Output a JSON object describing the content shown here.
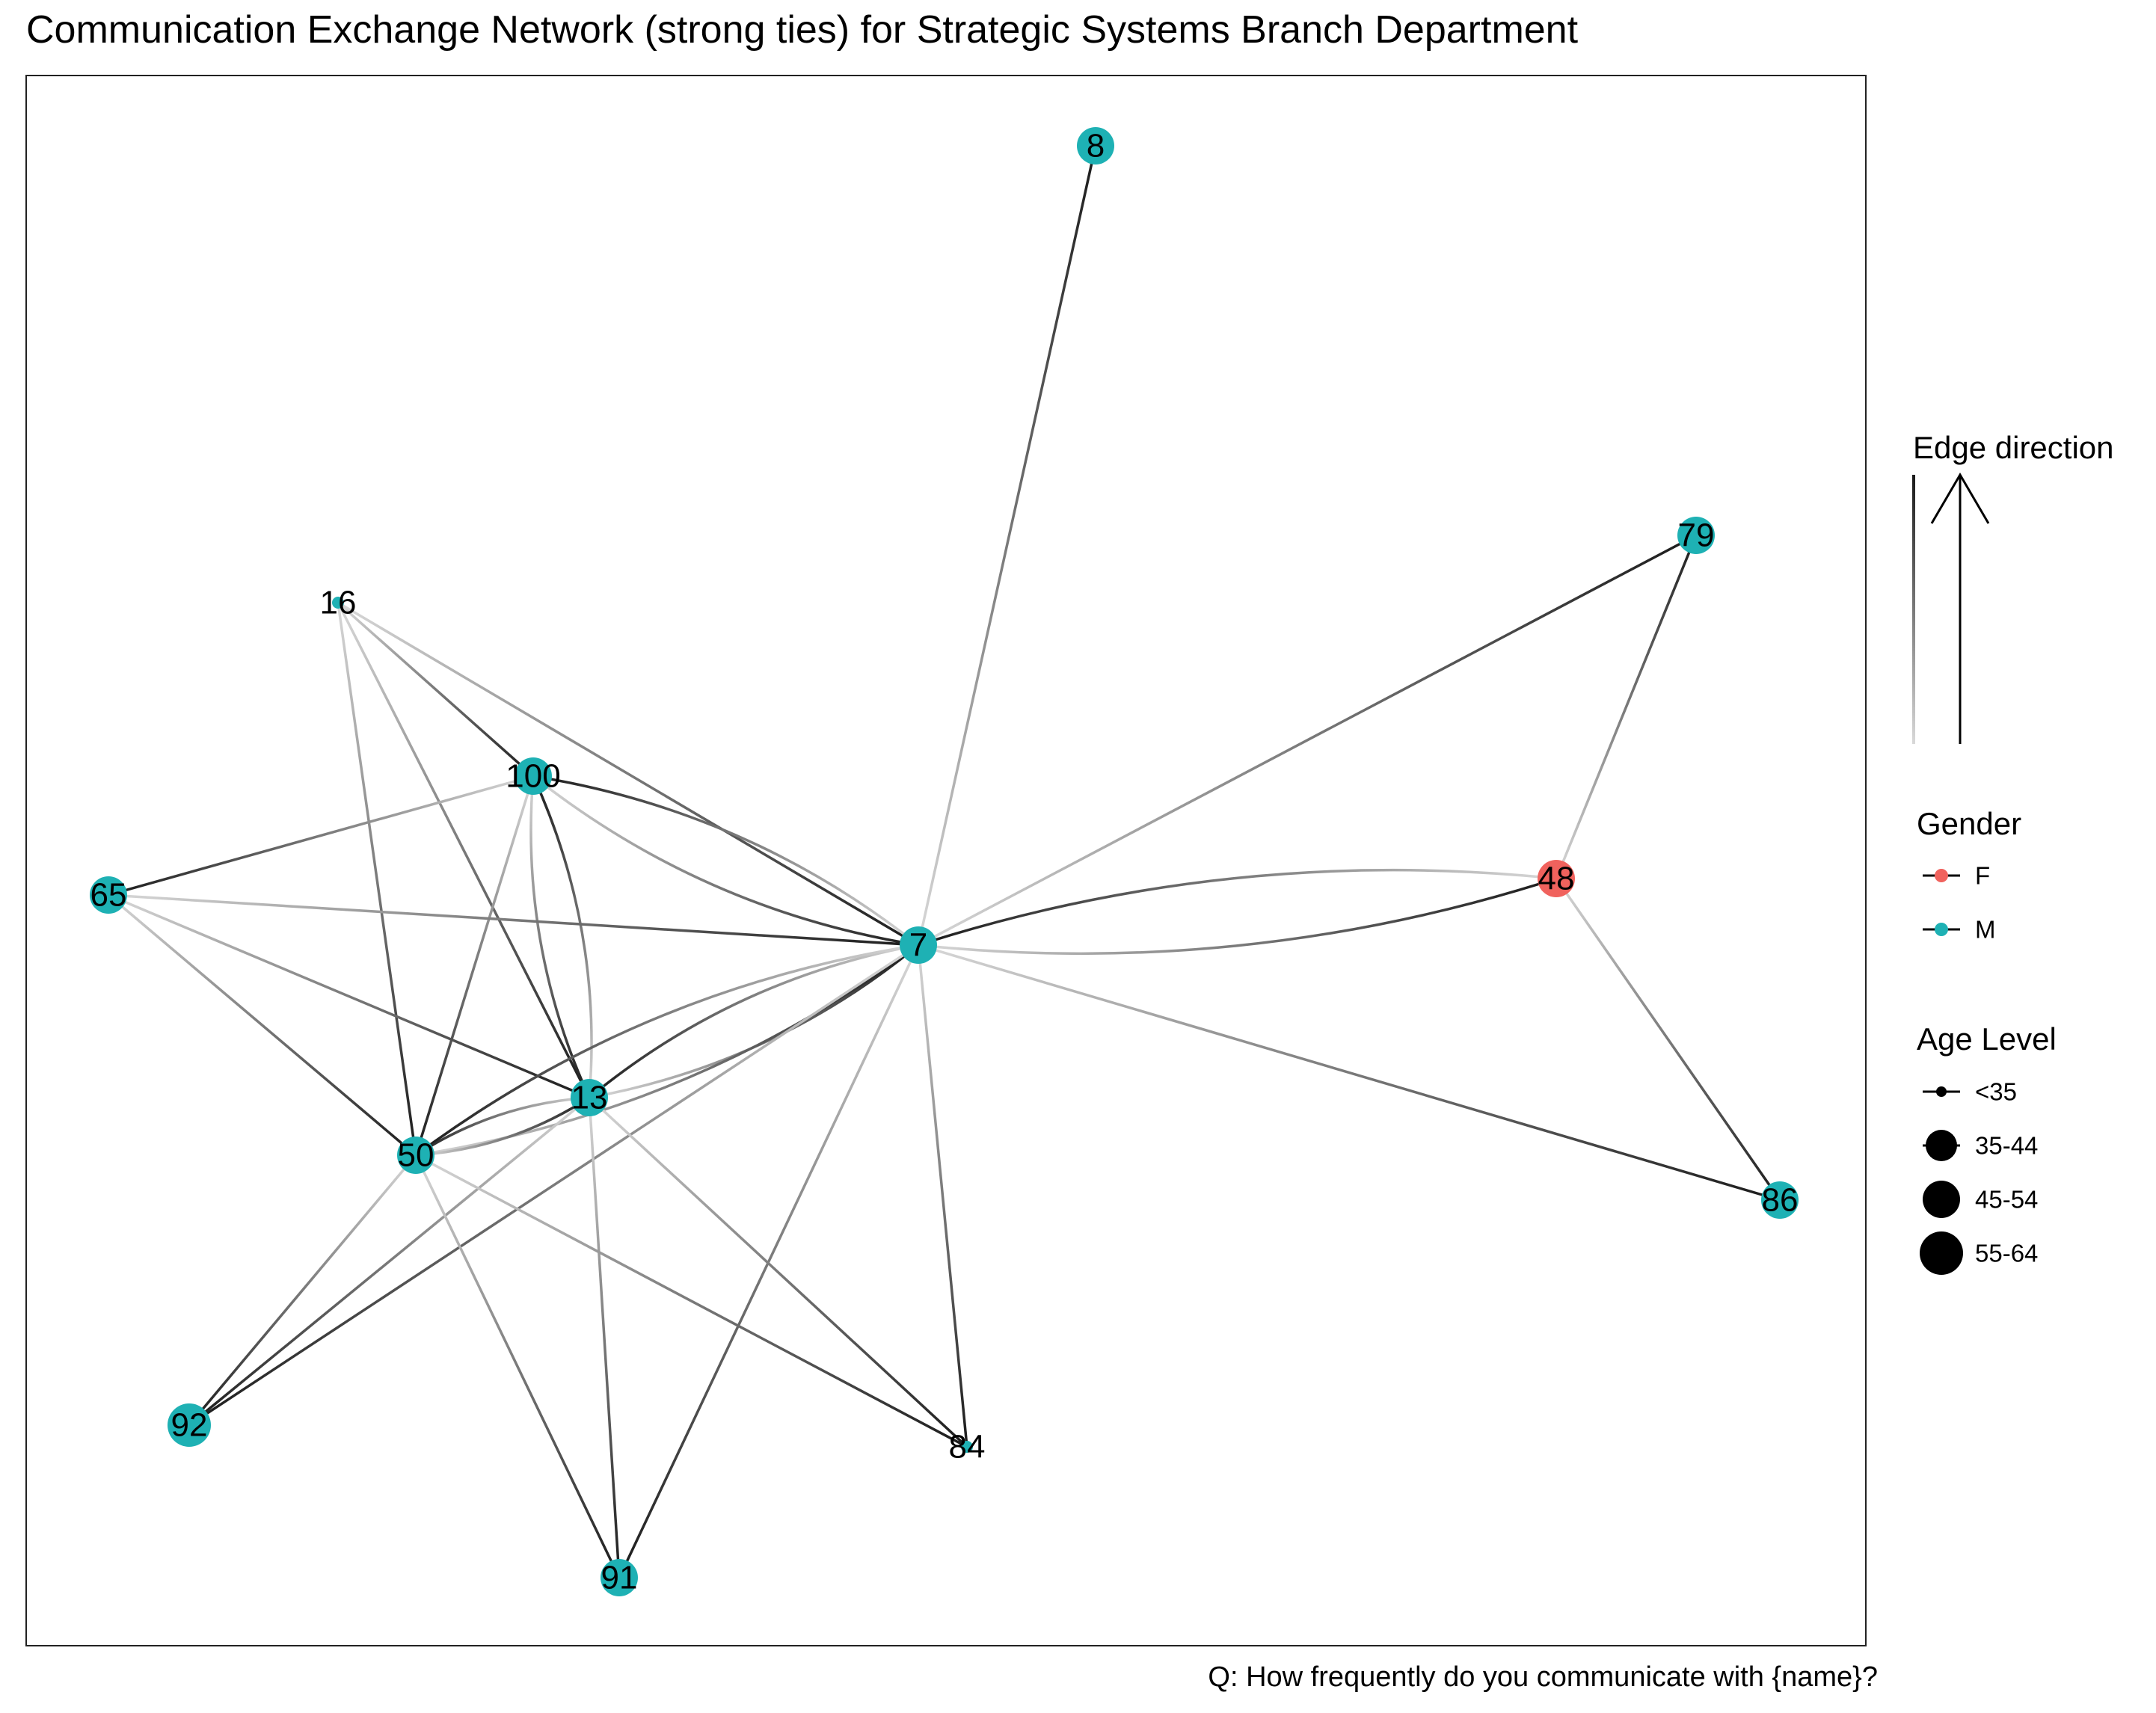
{
  "title": "Communication Exchange Network (strong ties) for Strategic Systems Branch Department",
  "caption": "Q: How frequently do you communicate with {name}?",
  "colors": {
    "female": "#F0625D",
    "male": "#1EB1B4",
    "edge_dark": "#1a1a1a",
    "edge_light": "#d9d9d9"
  },
  "legend": {
    "edge_direction": {
      "title": "Edge direction"
    },
    "gender": {
      "title": "Gender",
      "items": [
        {
          "label": "F",
          "color": "#F0625D"
        },
        {
          "label": "M",
          "color": "#1EB1B4"
        }
      ]
    },
    "age": {
      "title": "Age Level",
      "items": [
        {
          "label": "<35"
        },
        {
          "label": "35-44"
        },
        {
          "label": "45-54"
        },
        {
          "label": "55-64"
        }
      ]
    }
  },
  "nodes": [
    {
      "id": "8",
      "gender": "M",
      "age": "45-54"
    },
    {
      "id": "79",
      "gender": "M",
      "age": "45-54"
    },
    {
      "id": "16",
      "gender": "M",
      "age": "<35"
    },
    {
      "id": "100",
      "gender": "M",
      "age": "45-54"
    },
    {
      "id": "65",
      "gender": "M",
      "age": "45-54"
    },
    {
      "id": "48",
      "gender": "F",
      "age": "45-54"
    },
    {
      "id": "7",
      "gender": "M",
      "age": "45-54"
    },
    {
      "id": "13",
      "gender": "M",
      "age": "45-54"
    },
    {
      "id": "50",
      "gender": "M",
      "age": "45-54"
    },
    {
      "id": "86",
      "gender": "M",
      "age": "45-54"
    },
    {
      "id": "92",
      "gender": "M",
      "age": "55-64"
    },
    {
      "id": "84",
      "gender": "M",
      "age": "<35"
    },
    {
      "id": "91",
      "gender": "M",
      "age": "45-54"
    }
  ],
  "edges": [
    {
      "source": "7",
      "target": "8"
    },
    {
      "source": "7",
      "target": "79"
    },
    {
      "source": "48",
      "target": "79"
    },
    {
      "source": "48",
      "target": "86"
    },
    {
      "source": "7",
      "target": "86"
    },
    {
      "source": "7",
      "target": "48"
    },
    {
      "source": "48",
      "target": "7"
    },
    {
      "source": "16",
      "target": "7"
    },
    {
      "source": "16",
      "target": "100"
    },
    {
      "source": "16",
      "target": "13"
    },
    {
      "source": "16",
      "target": "50"
    },
    {
      "source": "100",
      "target": "7"
    },
    {
      "source": "7",
      "target": "100"
    },
    {
      "source": "100",
      "target": "65"
    },
    {
      "source": "100",
      "target": "50"
    },
    {
      "source": "100",
      "target": "13"
    },
    {
      "source": "13",
      "target": "100"
    },
    {
      "source": "65",
      "target": "7"
    },
    {
      "source": "65",
      "target": "13"
    },
    {
      "source": "65",
      "target": "50"
    },
    {
      "source": "7",
      "target": "13"
    },
    {
      "source": "13",
      "target": "7"
    },
    {
      "source": "7",
      "target": "50"
    },
    {
      "source": "50",
      "target": "7"
    },
    {
      "source": "13",
      "target": "50"
    },
    {
      "source": "50",
      "target": "13"
    },
    {
      "source": "7",
      "target": "92"
    },
    {
      "source": "13",
      "target": "92"
    },
    {
      "source": "50",
      "target": "92"
    },
    {
      "source": "7",
      "target": "91"
    },
    {
      "source": "13",
      "target": "91"
    },
    {
      "source": "50",
      "target": "91"
    },
    {
      "source": "7",
      "target": "84"
    },
    {
      "source": "13",
      "target": "84"
    },
    {
      "source": "50",
      "target": "84"
    }
  ]
}
